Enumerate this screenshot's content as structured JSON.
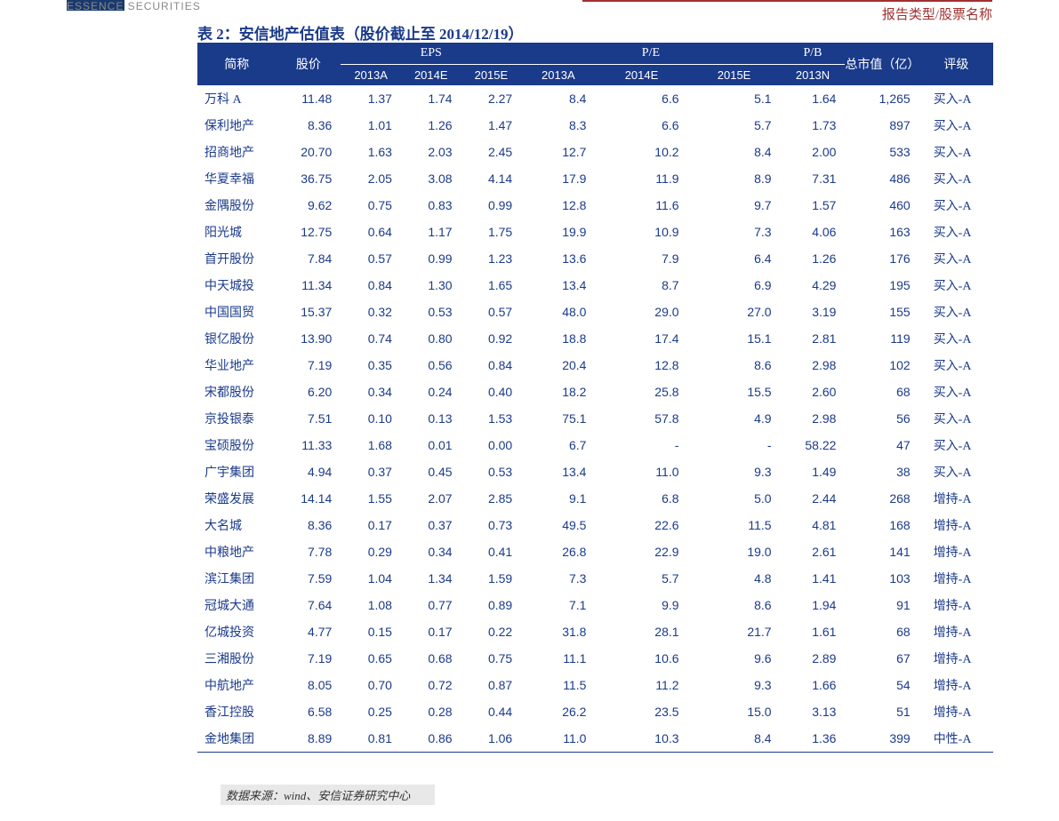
{
  "header": {
    "left_text": "ESSENCE SECURITIES",
    "right_text": "报告类型/股票名称"
  },
  "title": "表 2：安信地产估值表（股价截止至 2014/12/19）",
  "table": {
    "columns": {
      "name": "简称",
      "price": "股价",
      "eps_group": "EPS",
      "pe_group": "P/E",
      "pb_group": "P/B",
      "mcap": "总市值（亿）",
      "rating": "评级",
      "eps_2013a": "2013A",
      "eps_2014e": "2014E",
      "eps_2015e": "2015E",
      "pe_2013a": "2013A",
      "pe_2014e": "2014E",
      "pe_2015e": "2015E",
      "pb_2013n": "2013N"
    },
    "rows": [
      {
        "name": "万科 A",
        "price": "11.48",
        "eps13": "1.37",
        "eps14": "1.74",
        "eps15": "2.27",
        "pe13": "8.4",
        "pe14": "6.6",
        "pe15": "5.1",
        "pb": "1.64",
        "mcap": "1,265",
        "rating": "买入-A"
      },
      {
        "name": "保利地产",
        "price": "8.36",
        "eps13": "1.01",
        "eps14": "1.26",
        "eps15": "1.47",
        "pe13": "8.3",
        "pe14": "6.6",
        "pe15": "5.7",
        "pb": "1.73",
        "mcap": "897",
        "rating": "买入-A"
      },
      {
        "name": "招商地产",
        "price": "20.70",
        "eps13": "1.63",
        "eps14": "2.03",
        "eps15": "2.45",
        "pe13": "12.7",
        "pe14": "10.2",
        "pe15": "8.4",
        "pb": "2.00",
        "mcap": "533",
        "rating": "买入-A"
      },
      {
        "name": "华夏幸福",
        "price": "36.75",
        "eps13": "2.05",
        "eps14": "3.08",
        "eps15": "4.14",
        "pe13": "17.9",
        "pe14": "11.9",
        "pe15": "8.9",
        "pb": "7.31",
        "mcap": "486",
        "rating": "买入-A"
      },
      {
        "name": "金隅股份",
        "price": "9.62",
        "eps13": "0.75",
        "eps14": "0.83",
        "eps15": "0.99",
        "pe13": "12.8",
        "pe14": "11.6",
        "pe15": "9.7",
        "pb": "1.57",
        "mcap": "460",
        "rating": "买入-A"
      },
      {
        "name": "阳光城",
        "price": "12.75",
        "eps13": "0.64",
        "eps14": "1.17",
        "eps15": "1.75",
        "pe13": "19.9",
        "pe14": "10.9",
        "pe15": "7.3",
        "pb": "4.06",
        "mcap": "163",
        "rating": "买入-A"
      },
      {
        "name": "首开股份",
        "price": "7.84",
        "eps13": "0.57",
        "eps14": "0.99",
        "eps15": "1.23",
        "pe13": "13.6",
        "pe14": "7.9",
        "pe15": "6.4",
        "pb": "1.26",
        "mcap": "176",
        "rating": "买入-A"
      },
      {
        "name": "中天城投",
        "price": "11.34",
        "eps13": "0.84",
        "eps14": "1.30",
        "eps15": "1.65",
        "pe13": "13.4",
        "pe14": "8.7",
        "pe15": "6.9",
        "pb": "4.29",
        "mcap": "195",
        "rating": "买入-A"
      },
      {
        "name": "中国国贸",
        "price": "15.37",
        "eps13": "0.32",
        "eps14": "0.53",
        "eps15": "0.57",
        "pe13": "48.0",
        "pe14": "29.0",
        "pe15": "27.0",
        "pb": "3.19",
        "mcap": "155",
        "rating": "买入-A"
      },
      {
        "name": "银亿股份",
        "price": "13.90",
        "eps13": "0.74",
        "eps14": "0.80",
        "eps15": "0.92",
        "pe13": "18.8",
        "pe14": "17.4",
        "pe15": "15.1",
        "pb": "2.81",
        "mcap": "119",
        "rating": "买入-A"
      },
      {
        "name": "华业地产",
        "price": "7.19",
        "eps13": "0.35",
        "eps14": "0.56",
        "eps15": "0.84",
        "pe13": "20.4",
        "pe14": "12.8",
        "pe15": "8.6",
        "pb": "2.98",
        "mcap": "102",
        "rating": "买入-A"
      },
      {
        "name": "宋都股份",
        "price": "6.20",
        "eps13": "0.34",
        "eps14": "0.24",
        "eps15": "0.40",
        "pe13": "18.2",
        "pe14": "25.8",
        "pe15": "15.5",
        "pb": "2.60",
        "mcap": "68",
        "rating": "买入-A"
      },
      {
        "name": "京投银泰",
        "price": "7.51",
        "eps13": "0.10",
        "eps14": "0.13",
        "eps15": "1.53",
        "pe13": "75.1",
        "pe14": "57.8",
        "pe15": "4.9",
        "pb": "2.98",
        "mcap": "56",
        "rating": "买入-A"
      },
      {
        "name": "宝硕股份",
        "price": "11.33",
        "eps13": "1.68",
        "eps14": "0.01",
        "eps15": "0.00",
        "pe13": "6.7",
        "pe14": "-",
        "pe15": "-",
        "pb": "58.22",
        "mcap": "47",
        "rating": "买入-A"
      },
      {
        "name": "广宇集团",
        "price": "4.94",
        "eps13": "0.37",
        "eps14": "0.45",
        "eps15": "0.53",
        "pe13": "13.4",
        "pe14": "11.0",
        "pe15": "9.3",
        "pb": "1.49",
        "mcap": "38",
        "rating": "买入-A"
      },
      {
        "name": "荣盛发展",
        "price": "14.14",
        "eps13": "1.55",
        "eps14": "2.07",
        "eps15": "2.85",
        "pe13": "9.1",
        "pe14": "6.8",
        "pe15": "5.0",
        "pb": "2.44",
        "mcap": "268",
        "rating": "增持-A"
      },
      {
        "name": "大名城",
        "price": "8.36",
        "eps13": "0.17",
        "eps14": "0.37",
        "eps15": "0.73",
        "pe13": "49.5",
        "pe14": "22.6",
        "pe15": "11.5",
        "pb": "4.81",
        "mcap": "168",
        "rating": "增持-A"
      },
      {
        "name": "中粮地产",
        "price": "7.78",
        "eps13": "0.29",
        "eps14": "0.34",
        "eps15": "0.41",
        "pe13": "26.8",
        "pe14": "22.9",
        "pe15": "19.0",
        "pb": "2.61",
        "mcap": "141",
        "rating": "增持-A"
      },
      {
        "name": "滨江集团",
        "price": "7.59",
        "eps13": "1.04",
        "eps14": "1.34",
        "eps15": "1.59",
        "pe13": "7.3",
        "pe14": "5.7",
        "pe15": "4.8",
        "pb": "1.41",
        "mcap": "103",
        "rating": "增持-A"
      },
      {
        "name": "冠城大通",
        "price": "7.64",
        "eps13": "1.08",
        "eps14": "0.77",
        "eps15": "0.89",
        "pe13": "7.1",
        "pe14": "9.9",
        "pe15": "8.6",
        "pb": "1.94",
        "mcap": "91",
        "rating": "增持-A"
      },
      {
        "name": "亿城投资",
        "price": "4.77",
        "eps13": "0.15",
        "eps14": "0.17",
        "eps15": "0.22",
        "pe13": "31.8",
        "pe14": "28.1",
        "pe15": "21.7",
        "pb": "1.61",
        "mcap": "68",
        "rating": "增持-A"
      },
      {
        "name": "三湘股份",
        "price": "7.19",
        "eps13": "0.65",
        "eps14": "0.68",
        "eps15": "0.75",
        "pe13": "11.1",
        "pe14": "10.6",
        "pe15": "9.6",
        "pb": "2.89",
        "mcap": "67",
        "rating": "增持-A"
      },
      {
        "name": "中航地产",
        "price": "8.05",
        "eps13": "0.70",
        "eps14": "0.72",
        "eps15": "0.87",
        "pe13": "11.5",
        "pe14": "11.2",
        "pe15": "9.3",
        "pb": "1.66",
        "mcap": "54",
        "rating": "增持-A"
      },
      {
        "name": "香江控股",
        "price": "6.58",
        "eps13": "0.25",
        "eps14": "0.28",
        "eps15": "0.44",
        "pe13": "26.2",
        "pe14": "23.5",
        "pe15": "15.0",
        "pb": "3.13",
        "mcap": "51",
        "rating": "增持-A"
      },
      {
        "name": "金地集团",
        "price": "8.89",
        "eps13": "0.81",
        "eps14": "0.86",
        "eps15": "1.06",
        "pe13": "11.0",
        "pe14": "10.3",
        "pe15": "8.4",
        "pb": "1.36",
        "mcap": "399",
        "rating": "中性-A"
      }
    ]
  },
  "footer": "数据来源：wind、安信证券研究中心",
  "styling": {
    "header_bg": "#1a3a8a",
    "header_text": "#ffffff",
    "body_text": "#1a3a8a",
    "page_bg": "#ffffff",
    "footer_bg": "#e8e8e8",
    "right_header_color": "#a03030",
    "font_size_body": 14,
    "font_size_header": 14,
    "font_size_title": 17
  }
}
